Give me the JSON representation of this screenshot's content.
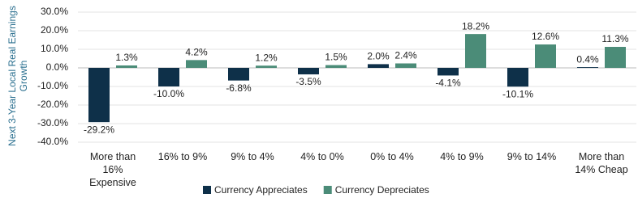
{
  "chart_data": {
    "type": "bar",
    "y_label": "Next 3-Year Local Real Earnings Growth",
    "categories": [
      "More than 16% Expensive",
      "16% to 9%",
      "9% to 4%",
      "4% to 0%",
      "0% to 4%",
      "4% to 9%",
      "9% to 14%",
      "More than 14% Cheap"
    ],
    "series": [
      {
        "name": "Currency Appreciates",
        "color": "#0e3049",
        "values": [
          -29.2,
          -10.0,
          -6.8,
          -3.5,
          2.0,
          -4.1,
          -10.1,
          0.4
        ],
        "value_labels": [
          "-29.2%",
          "-10.0%",
          "-6.8%",
          "-3.5%",
          "2.0%",
          "-4.1%",
          "-10.1%",
          "0.4%"
        ]
      },
      {
        "name": "Currency Depreciates",
        "color": "#4b8c78",
        "values": [
          1.3,
          4.2,
          1.2,
          1.5,
          2.4,
          18.2,
          12.6,
          11.3
        ],
        "value_labels": [
          "1.3%",
          "4.2%",
          "1.2%",
          "1.5%",
          "2.4%",
          "18.2%",
          "12.6%",
          "11.3%"
        ]
      }
    ],
    "ylim": [
      -40,
      30
    ],
    "yticks": [
      {
        "value": 30,
        "label": "30.0%"
      },
      {
        "value": 20,
        "label": "20.0%"
      },
      {
        "value": 10,
        "label": "10.0%"
      },
      {
        "value": 0,
        "label": "0.0%"
      },
      {
        "value": -10,
        "label": "-10.0%"
      },
      {
        "value": -20,
        "label": "-20.0%"
      },
      {
        "value": -30,
        "label": "-30.0%"
      },
      {
        "value": -40,
        "label": "-40.0%"
      }
    ],
    "grid": true
  }
}
